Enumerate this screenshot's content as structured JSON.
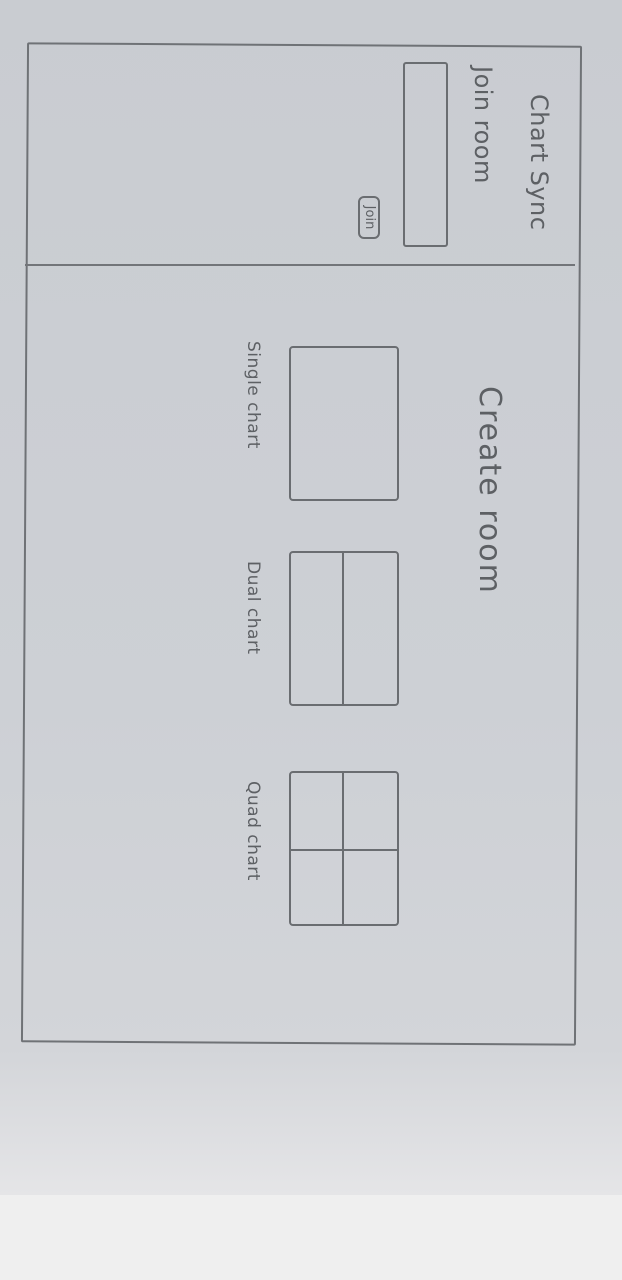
{
  "sidebar": {
    "title": "Chart Sync",
    "join_label": "Join room",
    "join_input_value": "",
    "join_button_label": "Join"
  },
  "main": {
    "title": "Create room",
    "options": [
      {
        "label": "Single chart",
        "panels": 1
      },
      {
        "label": "Dual chart",
        "panels": 2
      },
      {
        "label": "Quad chart",
        "panels": 4
      }
    ]
  },
  "colors": {
    "pencil": "#5d6064",
    "paper": "#cdd0d5"
  }
}
